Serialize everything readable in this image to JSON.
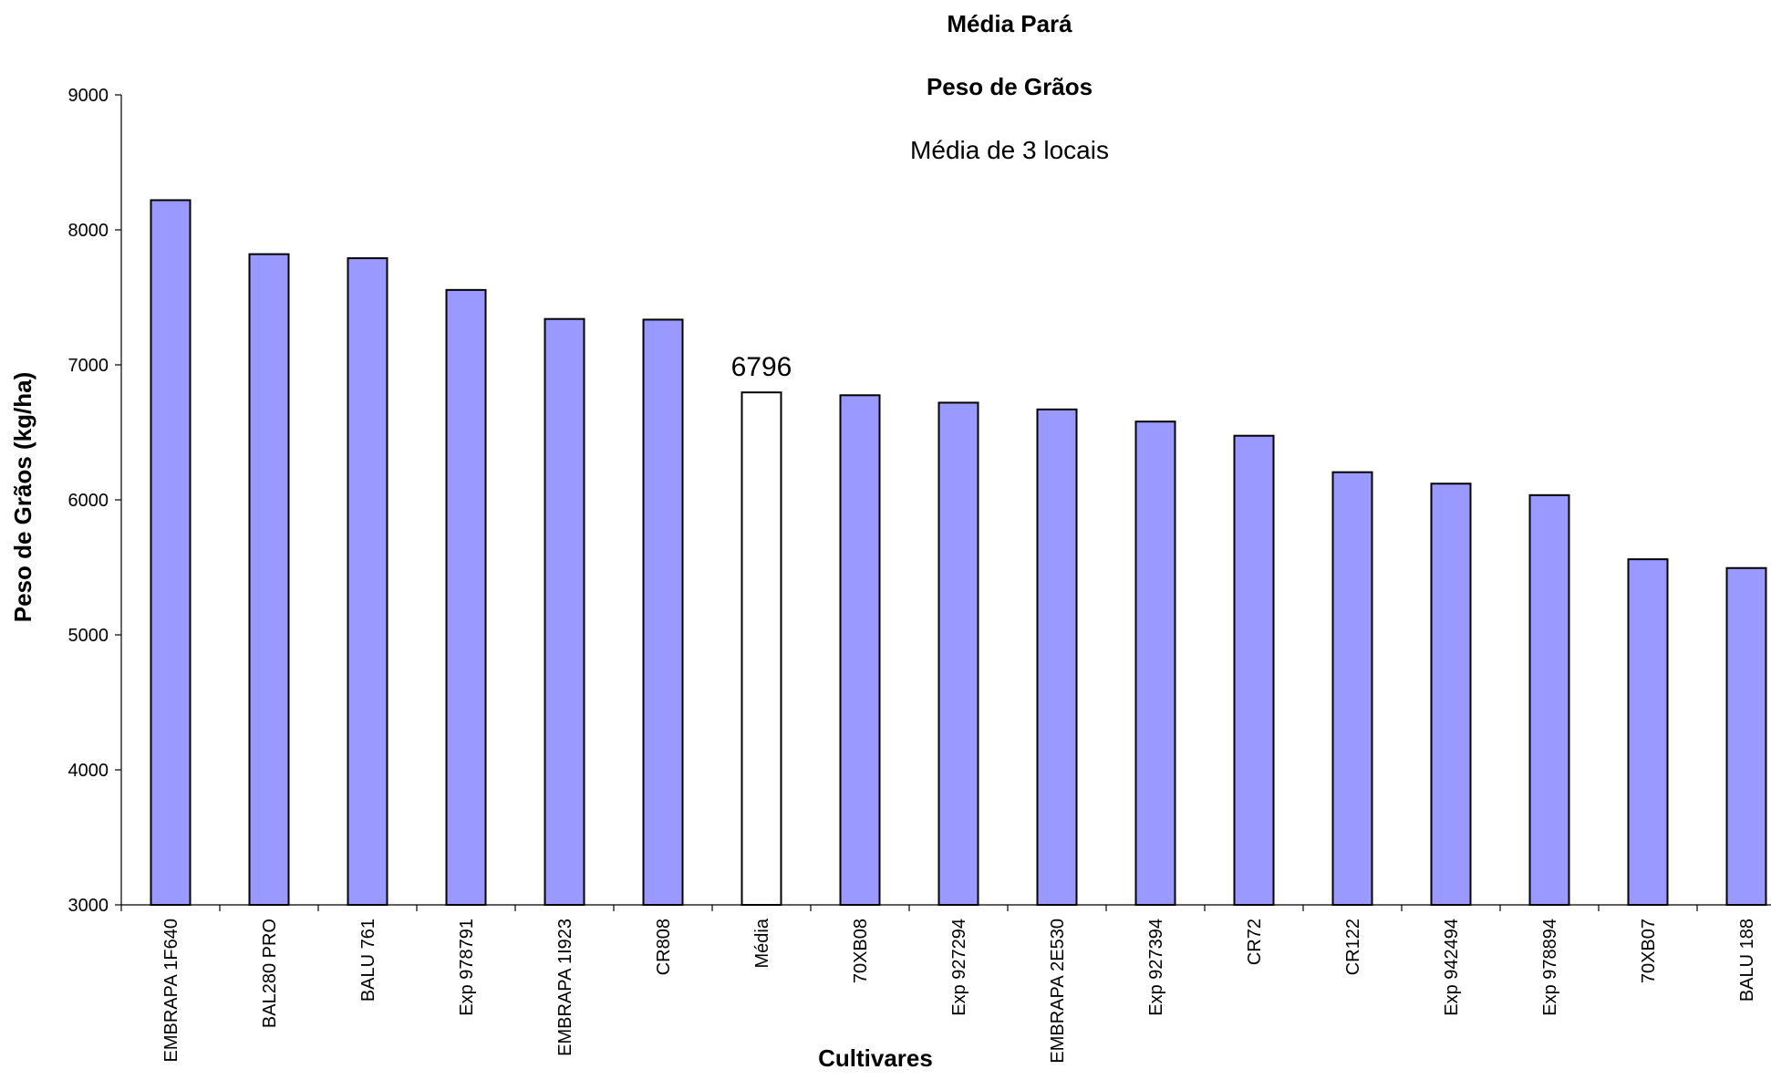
{
  "chart_data": {
    "type": "bar",
    "title": "Média Pará",
    "subtitle": "Peso de Grãos",
    "subtitle2": "Média de 3 locais",
    "xlabel": "Cultivares",
    "ylabel": "Peso de Grãos (kg/ha)",
    "ylim": [
      3000,
      9000
    ],
    "yticks": [
      3000,
      4000,
      5000,
      6000,
      7000,
      8000,
      9000
    ],
    "categories": [
      "EMBRAPA 1F640",
      "BAL280 PRO",
      "BALU 761",
      "Exp 978791",
      "EMBRAPA 1I923",
      "CR808",
      "Média",
      "70XB08",
      "Exp 927294",
      "EMBRAPA 2E530",
      "Exp 927394",
      "CR72",
      "CR122",
      "Exp 942494",
      "Exp 978894",
      "70XB07",
      "BALU 188"
    ],
    "values": [
      8220,
      7820,
      7790,
      7555,
      7340,
      7335,
      6796,
      6775,
      6720,
      6670,
      6580,
      6475,
      6205,
      6120,
      6035,
      5560,
      5495
    ],
    "highlight_index": 6,
    "highlight_label": "6796",
    "grid": false,
    "legend": "none",
    "colors": {
      "bar": "#9999ff",
      "highlight": "#ffffff",
      "stroke": "#000000"
    }
  }
}
